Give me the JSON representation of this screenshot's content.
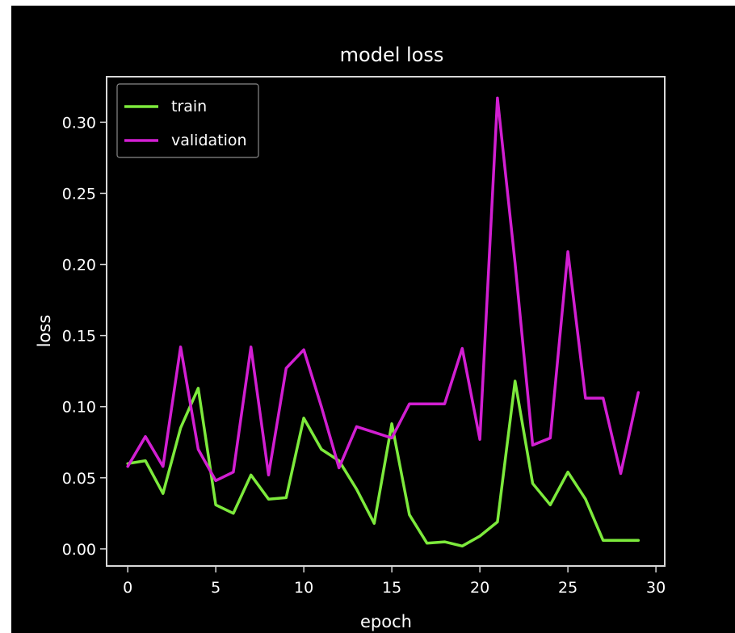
{
  "chart_data": {
    "type": "line",
    "title": "model loss",
    "xlabel": "epoch",
    "ylabel": "loss",
    "xlim": [
      -1.2,
      30.5
    ],
    "ylim": [
      -0.012,
      0.332
    ],
    "xticks": [
      0,
      5,
      10,
      15,
      20,
      25,
      30
    ],
    "yticks": [
      0.0,
      0.05,
      0.1,
      0.15,
      0.2,
      0.25,
      0.3
    ],
    "ytick_labels": [
      "0.00",
      "0.05",
      "0.10",
      "0.15",
      "0.20",
      "0.25",
      "0.30"
    ],
    "grid": false,
    "legend_position": "upper-left",
    "x": [
      0,
      1,
      2,
      3,
      4,
      5,
      6,
      7,
      8,
      9,
      10,
      11,
      12,
      13,
      14,
      15,
      16,
      17,
      18,
      19,
      20,
      21,
      22,
      23,
      24,
      25,
      26,
      27,
      28,
      29
    ],
    "series": [
      {
        "name": "train",
        "color": "#7dea3c",
        "values": [
          0.06,
          0.062,
          0.039,
          0.085,
          0.113,
          0.031,
          0.025,
          0.052,
          0.035,
          0.036,
          0.092,
          0.07,
          0.062,
          0.042,
          0.018,
          0.088,
          0.024,
          0.004,
          0.005,
          0.002,
          0.009,
          0.019,
          0.118,
          0.046,
          0.031,
          0.054,
          0.035,
          0.006,
          0.006,
          0.006
        ]
      },
      {
        "name": "validation",
        "color": "#d21fd2",
        "values": [
          0.058,
          0.079,
          0.058,
          0.142,
          0.07,
          0.048,
          0.054,
          0.142,
          0.052,
          0.127,
          0.14,
          0.1,
          0.057,
          0.086,
          0.082,
          0.078,
          0.102,
          0.102,
          0.102,
          0.141,
          0.077,
          0.317,
          0.201,
          0.073,
          0.078,
          0.209,
          0.106,
          0.106,
          0.053,
          0.11
        ]
      }
    ]
  }
}
